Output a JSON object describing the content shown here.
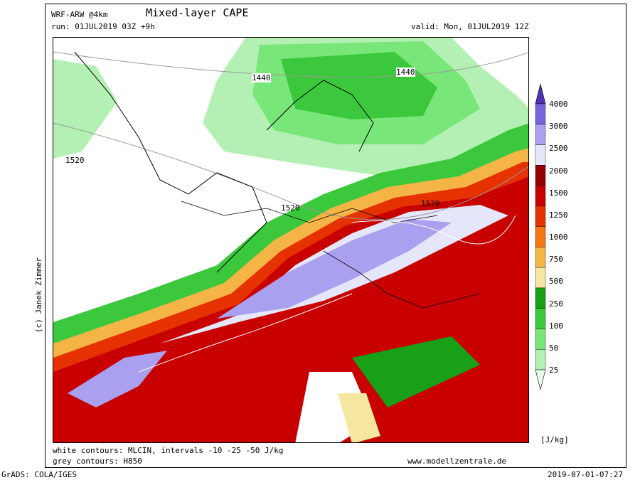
{
  "header": {
    "model": "WRF-ARW @4km",
    "title": "Mixed-layer CAPE",
    "run": "run: 01JUL2019 03Z +9h",
    "valid": "valid: Mon, 01JUL2019 12Z"
  },
  "map": {
    "contour_labels": [
      "1440",
      "1440",
      "1520",
      "1520",
      "1520"
    ],
    "credit": "(c) Janek Zimmer"
  },
  "legend": {
    "unit": "[J/kg]",
    "levels": [
      "25",
      "50",
      "100",
      "250",
      "500",
      "750",
      "1000",
      "1250",
      "1500",
      "2000",
      "2500",
      "3000",
      "4000"
    ],
    "colors": [
      "#e6ffe6",
      "#b4f0b4",
      "#78e678",
      "#3cc83c",
      "#18a018",
      "#f5e6a0",
      "#f5b446",
      "#f57814",
      "#e63200",
      "#c80000",
      "#960000",
      "#e6e6fa",
      "#aaa0f0",
      "#7864dc",
      "#5032b4"
    ]
  },
  "footer": {
    "white_contours": "white contours: MLCIN, intervals -10 -25 -50 J/kg",
    "grey_contours": "grey contours: H850",
    "website": "www.modellzentrale.de",
    "grads": "GrADS: COLA/IGES",
    "timestamp": "2019-07-01-07:27"
  }
}
